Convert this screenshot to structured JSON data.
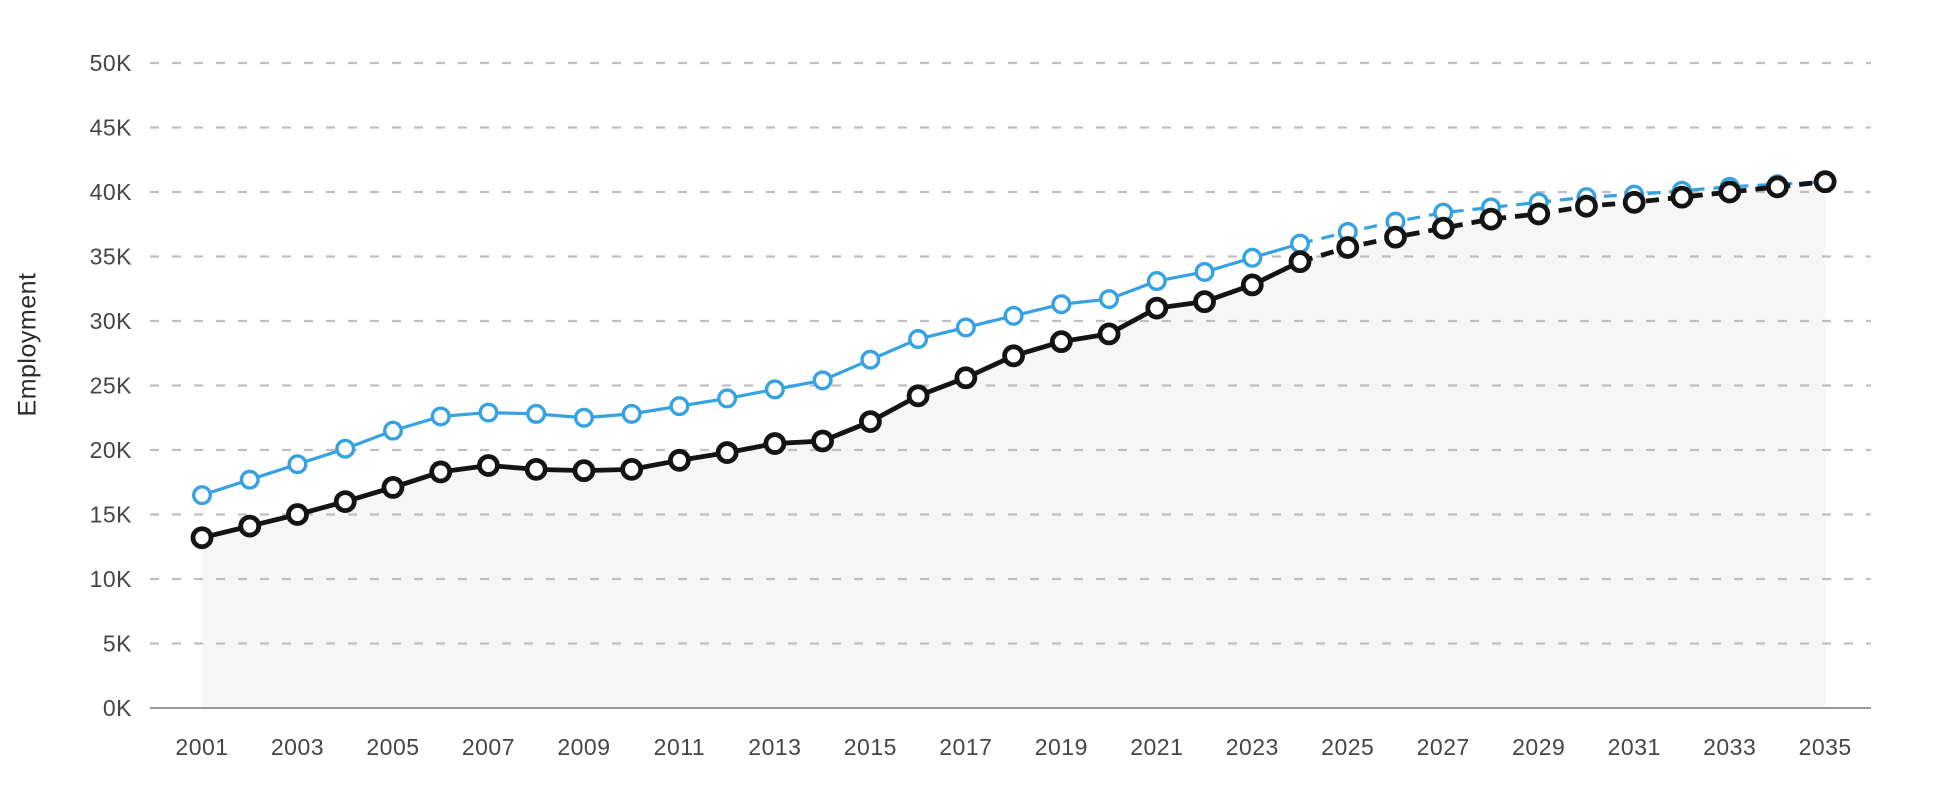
{
  "page": {
    "background": "#ffffff"
  },
  "chart_data": {
    "type": "line",
    "title": "",
    "ylabel": "Employment",
    "xlabel": "",
    "legend_position": "none",
    "grid": "horizontal-dashed",
    "ylim": [
      0,
      50000
    ],
    "x": [
      2001,
      2002,
      2003,
      2004,
      2005,
      2006,
      2007,
      2008,
      2009,
      2010,
      2011,
      2012,
      2013,
      2014,
      2015,
      2016,
      2017,
      2018,
      2019,
      2020,
      2021,
      2022,
      2023,
      2024,
      2025,
      2026,
      2027,
      2028,
      2029,
      2030,
      2031,
      2032,
      2033,
      2034,
      2035
    ],
    "x_tick_labels": [
      "2001",
      "2003",
      "2005",
      "2007",
      "2009",
      "2011",
      "2013",
      "2015",
      "2017",
      "2019",
      "2021",
      "2023",
      "2025",
      "2027",
      "2029",
      "2031",
      "2033",
      "2035"
    ],
    "y_tick_labels": [
      "0K",
      "5K",
      "10K",
      "15K",
      "20K",
      "25K",
      "30K",
      "35K",
      "40K",
      "45K",
      "50K"
    ],
    "y_tick_values": [
      0,
      5000,
      10000,
      15000,
      20000,
      25000,
      30000,
      35000,
      40000,
      45000,
      50000
    ],
    "projection_split_year": 2024,
    "line_style_after_split": "dashed",
    "series": [
      {
        "name": "series-blue",
        "color": "#36a2e2",
        "marker": "open-circle",
        "values": [
          16500,
          17700,
          18900,
          20100,
          21500,
          22600,
          22900,
          22800,
          22500,
          22800,
          23400,
          24000,
          24700,
          25400,
          27000,
          28600,
          29500,
          30400,
          31300,
          31700,
          33100,
          33800,
          34900,
          36000,
          36900,
          37700,
          38400,
          38800,
          39200,
          39600,
          39800,
          40100,
          40400,
          40600,
          40800
        ]
      },
      {
        "name": "series-black",
        "color": "#141414",
        "marker": "open-circle",
        "area_fill": "#f6f6f7",
        "values": [
          13200,
          14100,
          15000,
          16000,
          17100,
          18300,
          18800,
          18500,
          18400,
          18500,
          19200,
          19800,
          20500,
          20700,
          22200,
          24200,
          25600,
          27300,
          28400,
          29000,
          31000,
          31500,
          32800,
          34600,
          35700,
          36500,
          37200,
          37900,
          38300,
          38900,
          39200,
          39600,
          40000,
          40400,
          40800
        ]
      }
    ],
    "colors": {
      "gridline": "#c0bec2",
      "axis_line": "#9b9b9b",
      "tick_label": "#454545",
      "axis_title": "#2b2b2b"
    }
  }
}
